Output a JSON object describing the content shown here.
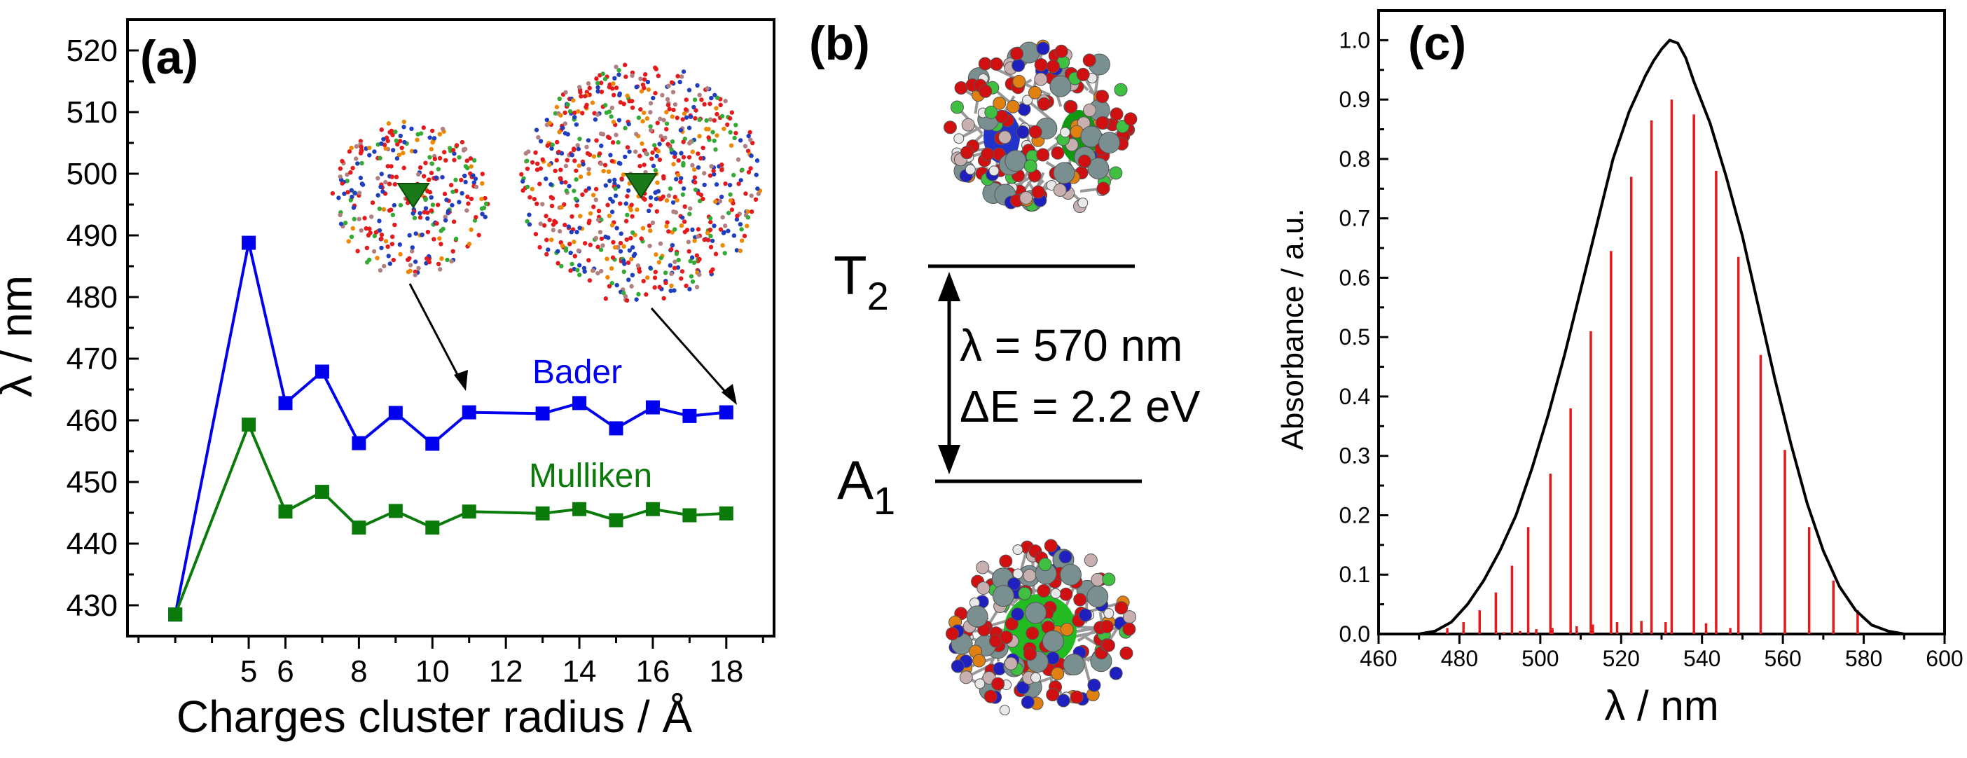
{
  "panels": {
    "a": {
      "label": "(a)"
    },
    "b": {
      "label": "(b)",
      "upper_state": "T",
      "upper_sub": "2",
      "lower_state": "A",
      "lower_sub": "1",
      "lambda_text": "λ = 570 nm",
      "energy_text": "ΔE = 2.2 eV"
    },
    "c": {
      "label": "(c)"
    }
  },
  "chart_data": [
    {
      "type": "line",
      "xlabel": "Charges cluster radius /  Å",
      "ylabel": "λ / nm",
      "xlim": [
        1.7,
        19.3
      ],
      "ylim": [
        425,
        525
      ],
      "xticks": [
        5,
        6,
        8,
        10,
        12,
        14,
        16,
        18
      ],
      "yticks": [
        430,
        440,
        450,
        460,
        470,
        480,
        490,
        500,
        510,
        520
      ],
      "series": [
        {
          "name": "Bader",
          "color": "#0000ee",
          "x": [
            3,
            5,
            6,
            7,
            8,
            9,
            10,
            11,
            13,
            14,
            15,
            16,
            17,
            18
          ],
          "y": [
            428.5,
            488.8,
            462.8,
            467.9,
            456.3,
            461.2,
            456.2,
            461.3,
            461.1,
            462.8,
            458.7,
            462.1,
            460.7,
            461.3
          ]
        },
        {
          "name": "Mulliken",
          "color": "#0a7a0a",
          "x": [
            3,
            5,
            6,
            7,
            8,
            9,
            10,
            11,
            13,
            14,
            15,
            16,
            17,
            18
          ],
          "y": [
            428.5,
            459.3,
            445.2,
            448.4,
            442.6,
            445.3,
            442.6,
            445.2,
            444.9,
            445.6,
            443.8,
            445.6,
            444.6,
            444.9
          ]
        }
      ]
    },
    {
      "type": "line",
      "xlabel": "λ / nm",
      "ylabel": "Absorbance / a.u.",
      "xlim": [
        460,
        600
      ],
      "ylim": [
        0,
        1.05
      ],
      "xticks": [
        460,
        480,
        500,
        520,
        540,
        560,
        580,
        600
      ],
      "yticks": [
        0.0,
        0.1,
        0.2,
        0.3,
        0.4,
        0.5,
        0.6,
        0.7,
        0.8,
        0.9,
        1.0
      ],
      "series": [
        {
          "type": "line",
          "color": "#000000",
          "x": [
            460,
            470,
            474,
            478,
            482,
            486,
            490,
            494,
            498,
            502,
            506,
            510,
            514,
            518,
            522,
            526,
            528,
            530,
            532,
            534,
            536,
            538,
            542,
            546,
            550,
            554,
            558,
            562,
            566,
            570,
            574,
            578,
            582,
            586,
            590,
            600
          ],
          "y": [
            0.0,
            0.0,
            0.005,
            0.02,
            0.05,
            0.09,
            0.14,
            0.2,
            0.28,
            0.37,
            0.47,
            0.58,
            0.69,
            0.8,
            0.88,
            0.94,
            0.965,
            0.985,
            1.0,
            0.995,
            0.97,
            0.93,
            0.86,
            0.77,
            0.67,
            0.55,
            0.43,
            0.32,
            0.22,
            0.14,
            0.08,
            0.04,
            0.015,
            0.005,
            0.0,
            0.0
          ]
        },
        {
          "type": "bar",
          "color": "#e41a1c",
          "x": [
            477,
            481,
            485,
            489,
            493,
            497,
            502.5,
            507.5,
            512.5,
            517.5,
            522.5,
            527.5,
            532.5,
            538,
            543.5,
            549,
            554.5,
            560.5,
            566.5,
            572.5,
            578.5,
            491,
            495,
            499,
            503,
            509,
            513,
            519,
            525,
            531,
            541,
            547
          ],
          "y": [
            0.01,
            0.02,
            0.04,
            0.07,
            0.115,
            0.18,
            0.27,
            0.38,
            0.51,
            0.645,
            0.77,
            0.865,
            0.9,
            0.875,
            0.78,
            0.635,
            0.47,
            0.31,
            0.18,
            0.09,
            0.04,
            0.003,
            0.005,
            0.008,
            0.01,
            0.013,
            0.016,
            0.02,
            0.022,
            0.02,
            0.018,
            0.01
          ]
        }
      ]
    }
  ]
}
